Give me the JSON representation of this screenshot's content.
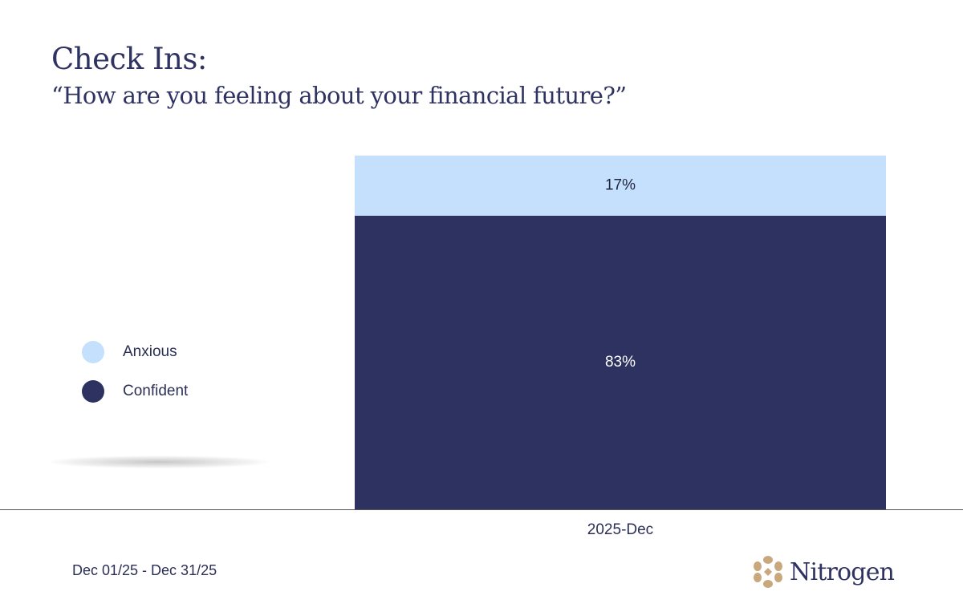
{
  "header": {
    "title": "Check Ins:",
    "subtitle": "“How are you feeling about your financial future?”"
  },
  "colors": {
    "anxious": "#c5e0fd",
    "confident": "#2d3260",
    "axis": "#555555",
    "logo_gold": "#c8a87c"
  },
  "chart_data": {
    "type": "bar",
    "stacked": true,
    "categories": [
      "2025-Dec"
    ],
    "series": [
      {
        "name": "Confident",
        "values": [
          83
        ],
        "label": "83%"
      },
      {
        "name": "Anxious",
        "values": [
          17
        ],
        "label": "17%"
      }
    ],
    "ylim": [
      0,
      100
    ],
    "legend": "left",
    "grid": false
  },
  "legend": {
    "items": [
      {
        "label": "Anxious",
        "color": "#c5e0fd"
      },
      {
        "label": "Confident",
        "color": "#2d3260"
      }
    ]
  },
  "footer": {
    "date_range": "Dec 01/25 - Dec 31/25",
    "logo_text": "Nitrogen",
    "logo_icon": "nitrogen-logo-icon"
  }
}
